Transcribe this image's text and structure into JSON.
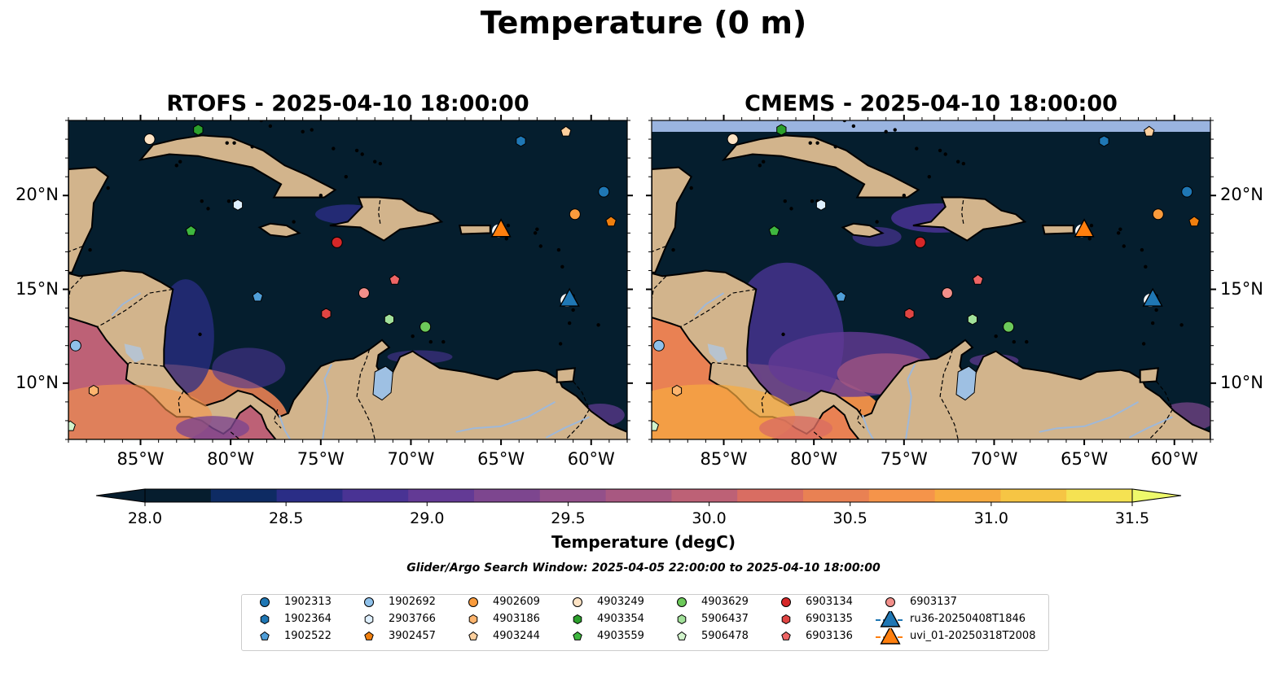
{
  "title": "Temperature (0 m)",
  "panels": [
    {
      "title": "RTOFS - 2025-04-10 18:00:00"
    },
    {
      "title": "CMEMS - 2025-04-10 18:00:00"
    }
  ],
  "map": {
    "lon_range": [
      -89.0,
      -58.0
    ],
    "lat_range": [
      7.0,
      24.0
    ],
    "lon_ticks": [
      "85°W",
      "80°W",
      "75°W",
      "70°W",
      "65°W",
      "60°W"
    ],
    "lat_ticks": [
      "20°N",
      "15°N",
      "10°N"
    ],
    "colors": {
      "land": "#d2b48c",
      "ocean_cold": "#051e2e",
      "river": "#9fb8d8",
      "lake": "#9ec0e3"
    }
  },
  "colorbar": {
    "label": "Temperature (degC)",
    "ticks": [
      "28.0",
      "28.5",
      "29.0",
      "29.5",
      "30.0",
      "30.5",
      "31.0",
      "31.5"
    ],
    "range": [
      28.0,
      31.5
    ],
    "colors": [
      "#061d2e",
      "#0e2b63",
      "#2a2d86",
      "#493394",
      "#633a95",
      "#7d468f",
      "#93508a",
      "#a85881",
      "#bd6176",
      "#d96d62",
      "#e98153",
      "#f5944a",
      "#f7ab40",
      "#f6c544",
      "#f5e252"
    ],
    "extend_low_color": "#061d2e",
    "extend_high_color": "#eef96b"
  },
  "search_window": "Glider/Argo Search Window: 2025-04-05 22:00:00 to 2025-04-10 18:00:00",
  "legend": {
    "items": [
      {
        "label": "1902313",
        "marker": "circle",
        "color": "#1f77b4"
      },
      {
        "label": "1902364",
        "marker": "hexagon",
        "color": "#1f77b4"
      },
      {
        "label": "1902522",
        "marker": "pentagon",
        "color": "#4f9ed8"
      },
      {
        "label": "1902692",
        "marker": "circle",
        "color": "#8fc1ea"
      },
      {
        "label": "2903766",
        "marker": "hexagon",
        "color": "#dff0ff"
      },
      {
        "label": "3902457",
        "marker": "pentagon",
        "color": "#f07f0e"
      },
      {
        "label": "4902609",
        "marker": "circle",
        "color": "#fa9b3c"
      },
      {
        "label": "4903186",
        "marker": "hexagon",
        "color": "#fdb56f"
      },
      {
        "label": "4903244",
        "marker": "pentagon",
        "color": "#fdd09e"
      },
      {
        "label": "4903249",
        "marker": "circle",
        "color": "#fde3c4"
      },
      {
        "label": "4903354",
        "marker": "hexagon",
        "color": "#2ca02c"
      },
      {
        "label": "4903559",
        "marker": "pentagon",
        "color": "#3fb73f"
      },
      {
        "label": "4903629",
        "marker": "circle",
        "color": "#6cc95a"
      },
      {
        "label": "5906437",
        "marker": "hexagon",
        "color": "#a2e19a"
      },
      {
        "label": "5906478",
        "marker": "pentagon",
        "color": "#d2f4cc"
      },
      {
        "label": "6903134",
        "marker": "circle",
        "color": "#d62728"
      },
      {
        "label": "6903135",
        "marker": "hexagon",
        "color": "#e04543"
      },
      {
        "label": "6903136",
        "marker": "pentagon",
        "color": "#ee6565"
      },
      {
        "label": "6903137",
        "marker": "circle",
        "color": "#f28f8a"
      },
      {
        "label": "ru36-20250408T1846",
        "marker": "triangle-line",
        "color": "#1f77b4"
      },
      {
        "label": "uvi_01-20250318T2008",
        "marker": "triangle-line",
        "color": "#ff7f0e"
      }
    ]
  },
  "floats": [
    {
      "id": "1902313",
      "lon": -59.3,
      "lat": 20.2
    },
    {
      "id": "1902364",
      "lon": -63.9,
      "lat": 22.9
    },
    {
      "id": "1902522",
      "lon": -78.5,
      "lat": 14.6
    },
    {
      "id": "1902692",
      "lon": -88.6,
      "lat": 12.0
    },
    {
      "id": "2903766",
      "lon": -79.6,
      "lat": 19.5
    },
    {
      "id": "3902457",
      "lon": -58.9,
      "lat": 18.6
    },
    {
      "id": "4902609",
      "lon": -60.9,
      "lat": 19.0
    },
    {
      "id": "4903186",
      "lon": -87.6,
      "lat": 9.6
    },
    {
      "id": "4903244",
      "lon": -61.4,
      "lat": 23.4
    },
    {
      "id": "4903249",
      "lon": -84.5,
      "lat": 23.0
    },
    {
      "id": "4903354",
      "lon": -81.8,
      "lat": 23.5
    },
    {
      "id": "4903559",
      "lon": -82.2,
      "lat": 18.1
    },
    {
      "id": "4903629",
      "lon": -69.2,
      "lat": 13.0
    },
    {
      "id": "5906437",
      "lon": -71.2,
      "lat": 13.4
    },
    {
      "id": "5906478",
      "lon": -88.9,
      "lat": 7.7
    },
    {
      "id": "6903134",
      "lon": -74.1,
      "lat": 17.5
    },
    {
      "id": "6903135",
      "lon": -74.7,
      "lat": 13.7
    },
    {
      "id": "6903136",
      "lon": -70.9,
      "lat": 15.5
    },
    {
      "id": "6903137",
      "lon": -72.6,
      "lat": 14.8
    }
  ],
  "gliders": [
    {
      "id": "ru36-20250408T1846",
      "lon": -61.2,
      "lat": 14.5
    },
    {
      "id": "uvi_01-20250318T2008",
      "lon": -65.0,
      "lat": 18.2
    }
  ]
}
